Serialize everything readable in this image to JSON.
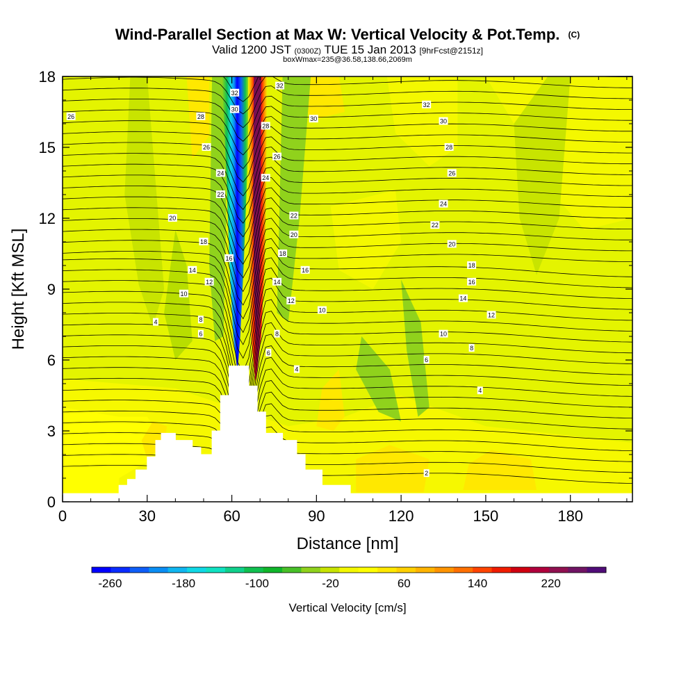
{
  "chart_data": {
    "type": "heatmap",
    "title": "Wind-Parallel Section at Max W: Vertical Velocity & Pot.Temp.",
    "title_unit": "(C)",
    "subtitle_valid": "Valid 1200 JST",
    "subtitle_z": "(0300Z)",
    "subtitle_date": "TUE 15 Jan 2013",
    "subtitle_fcst": "[9hrFcst@2151z]",
    "subtitle_box": "boxWmax=235@36.58,138.66,2069m",
    "xlabel": "Distance [nm]",
    "ylabel": "Height [Kft MSL]",
    "xlim": [
      0,
      202
    ],
    "ylim": [
      0,
      18
    ],
    "xticks": [
      "0",
      "30",
      "60",
      "90",
      "120",
      "150",
      "180"
    ],
    "yticks": [
      "0",
      "3",
      "6",
      "9",
      "12",
      "15",
      "18"
    ],
    "colorbar": {
      "label": "Vertical Velocity [cm/s]",
      "tick_labels": [
        "-260",
        "-180",
        "-100",
        "-20",
        "60",
        "140",
        "220"
      ],
      "range": [
        -280,
        280
      ],
      "colors": [
        "#0000ff",
        "#0a2cff",
        "#0e5ef8",
        "#0a8ef4",
        "#10b6f0",
        "#10d8e6",
        "#10e2c2",
        "#10d08c",
        "#10c050",
        "#10b62a",
        "#48c028",
        "#90d21c",
        "#c8e400",
        "#f4f800",
        "#ffff00",
        "#ffe800",
        "#ffd000",
        "#ffb400",
        "#ff9400",
        "#ff7000",
        "#ff4400",
        "#f01c00",
        "#d00010",
        "#b0003c",
        "#901050",
        "#701464",
        "#500c78"
      ]
    },
    "vertical_velocity_features": [
      {
        "kind": "downdraft",
        "x_nm": 61,
        "z_kft_bottom": 6,
        "z_kft_top": 18,
        "min_cm_s": -260
      },
      {
        "kind": "updraft",
        "x_nm": 70,
        "z_kft_bottom": 5,
        "z_kft_top": 18,
        "max_cm_s": 235
      }
    ],
    "terrain_profile_kft": [
      [
        0,
        0.35
      ],
      [
        20,
        0.35
      ],
      [
        20,
        0.7
      ],
      [
        23,
        0.7
      ],
      [
        23,
        0.95
      ],
      [
        26,
        0.95
      ],
      [
        26,
        1.35
      ],
      [
        30,
        1.35
      ],
      [
        30,
        1.9
      ],
      [
        33,
        1.9
      ],
      [
        33,
        2.6
      ],
      [
        35,
        2.6
      ],
      [
        35,
        2.9
      ],
      [
        40,
        2.9
      ],
      [
        40,
        2.6
      ],
      [
        46,
        2.6
      ],
      [
        46,
        2.3
      ],
      [
        49,
        2.3
      ],
      [
        49,
        2.0
      ],
      [
        53,
        2.0
      ],
      [
        53,
        3.0
      ],
      [
        56,
        3.0
      ],
      [
        56,
        4.5
      ],
      [
        59,
        4.5
      ],
      [
        59,
        5.75
      ],
      [
        66,
        5.75
      ],
      [
        66,
        4.9
      ],
      [
        69,
        4.9
      ],
      [
        69,
        3.8
      ],
      [
        72,
        3.8
      ],
      [
        72,
        2.9
      ],
      [
        78,
        2.9
      ],
      [
        78,
        2.6
      ],
      [
        83,
        2.6
      ],
      [
        83,
        2.0
      ],
      [
        86,
        2.0
      ],
      [
        86,
        1.35
      ],
      [
        92,
        1.35
      ],
      [
        92,
        0.7
      ],
      [
        102,
        0.7
      ],
      [
        102,
        0.35
      ],
      [
        202,
        0.35
      ]
    ],
    "theta_contours_C": [
      "2",
      "4",
      "6",
      "8",
      "10",
      "12",
      "14",
      "16",
      "18",
      "20",
      "22",
      "24",
      "26",
      "28",
      "30",
      "32"
    ],
    "theta_contour_labels": [
      {
        "text": "26",
        "x": 3,
        "z": 16.3
      },
      {
        "text": "32",
        "x": 61,
        "z": 17.3
      },
      {
        "text": "30",
        "x": 61,
        "z": 16.6
      },
      {
        "text": "28",
        "x": 49,
        "z": 16.3
      },
      {
        "text": "26",
        "x": 51,
        "z": 15.0
      },
      {
        "text": "24",
        "x": 56,
        "z": 13.9
      },
      {
        "text": "22",
        "x": 56,
        "z": 13.0
      },
      {
        "text": "20",
        "x": 39,
        "z": 12.0
      },
      {
        "text": "18",
        "x": 50,
        "z": 11.0
      },
      {
        "text": "16",
        "x": 59,
        "z": 10.3
      },
      {
        "text": "14",
        "x": 46,
        "z": 9.8
      },
      {
        "text": "12",
        "x": 52,
        "z": 9.3
      },
      {
        "text": "10",
        "x": 43,
        "z": 8.8
      },
      {
        "text": "8",
        "x": 49,
        "z": 7.7
      },
      {
        "text": "6",
        "x": 49,
        "z": 7.1
      },
      {
        "text": "4",
        "x": 33,
        "z": 7.6
      },
      {
        "text": "32",
        "x": 77,
        "z": 17.6
      },
      {
        "text": "28",
        "x": 72,
        "z": 15.9
      },
      {
        "text": "26",
        "x": 76,
        "z": 14.6
      },
      {
        "text": "24",
        "x": 72,
        "z": 13.7
      },
      {
        "text": "22",
        "x": 82,
        "z": 12.1
      },
      {
        "text": "20",
        "x": 82,
        "z": 11.3
      },
      {
        "text": "18",
        "x": 78,
        "z": 10.5
      },
      {
        "text": "16",
        "x": 86,
        "z": 9.8
      },
      {
        "text": "14",
        "x": 76,
        "z": 9.3
      },
      {
        "text": "12",
        "x": 81,
        "z": 8.5
      },
      {
        "text": "10",
        "x": 92,
        "z": 8.1
      },
      {
        "text": "8",
        "x": 76,
        "z": 7.1
      },
      {
        "text": "6",
        "x": 73,
        "z": 6.3
      },
      {
        "text": "4",
        "x": 83,
        "z": 5.6
      },
      {
        "text": "30",
        "x": 89,
        "z": 16.2
      },
      {
        "text": "32",
        "x": 129,
        "z": 16.8
      },
      {
        "text": "30",
        "x": 135,
        "z": 16.1
      },
      {
        "text": "28",
        "x": 137,
        "z": 15.0
      },
      {
        "text": "26",
        "x": 138,
        "z": 13.9
      },
      {
        "text": "24",
        "x": 135,
        "z": 12.6
      },
      {
        "text": "22",
        "x": 132,
        "z": 11.7
      },
      {
        "text": "20",
        "x": 138,
        "z": 10.9
      },
      {
        "text": "18",
        "x": 145,
        "z": 10.0
      },
      {
        "text": "16",
        "x": 145,
        "z": 9.3
      },
      {
        "text": "14",
        "x": 142,
        "z": 8.6
      },
      {
        "text": "12",
        "x": 152,
        "z": 7.9
      },
      {
        "text": "10",
        "x": 135,
        "z": 7.1
      },
      {
        "text": "8",
        "x": 145,
        "z": 6.5
      },
      {
        "text": "6",
        "x": 129,
        "z": 6.0
      },
      {
        "text": "4",
        "x": 148,
        "z": 4.7
      },
      {
        "text": "2",
        "x": 129,
        "z": 1.2
      }
    ]
  }
}
